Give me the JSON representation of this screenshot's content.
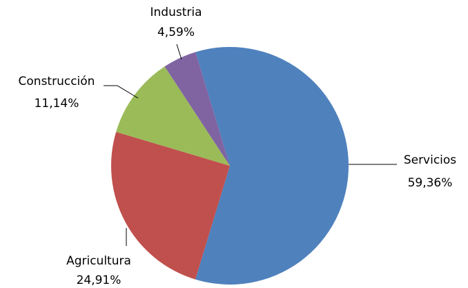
{
  "chart_data": {
    "type": "pie",
    "categories": [
      "Servicios",
      "Agricultura",
      "Construcción",
      "Industria"
    ],
    "values": [
      59.36,
      24.91,
      11.14,
      4.59
    ],
    "value_labels": [
      "59,36%",
      "24,91%",
      "11,14%",
      "4,59%"
    ],
    "colors": [
      "#4f81bd",
      "#c0504d",
      "#9bbb59",
      "#8064a2"
    ]
  }
}
